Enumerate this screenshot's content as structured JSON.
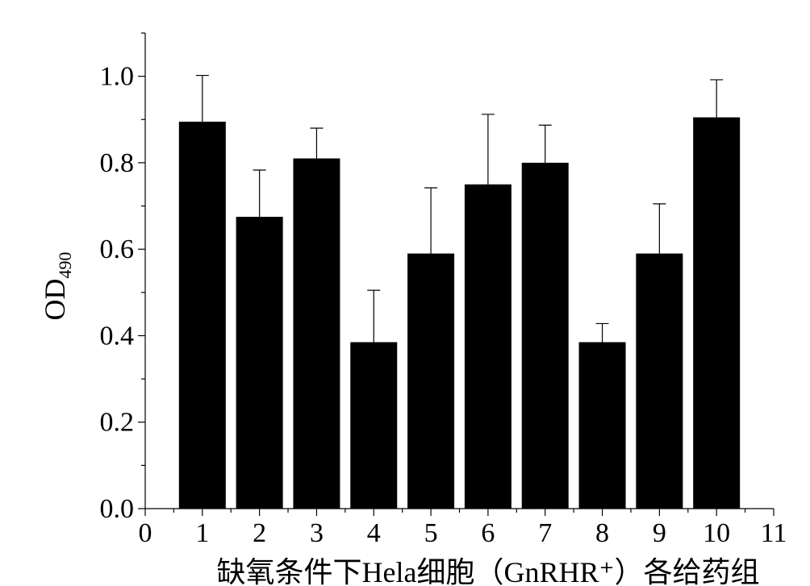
{
  "chart_data": {
    "type": "bar",
    "title": "",
    "xlabel": "缺氧条件下Hela细胞（GnRHR⁺）各给药组",
    "ylabel_main": "OD",
    "ylabel_sub": "490",
    "x": [
      1,
      2,
      3,
      4,
      5,
      6,
      7,
      8,
      9,
      10
    ],
    "values": [
      0.895,
      0.675,
      0.81,
      0.385,
      0.59,
      0.75,
      0.8,
      0.385,
      0.59,
      0.905
    ],
    "error_upper": [
      0.107,
      0.108,
      0.07,
      0.12,
      0.152,
      0.162,
      0.087,
      0.043,
      0.115,
      0.087
    ],
    "xlim": [
      0,
      11
    ],
    "ylim": [
      0,
      1.1
    ],
    "xticks": [
      "0",
      "1",
      "2",
      "3",
      "4",
      "5",
      "6",
      "7",
      "8",
      "9",
      "10",
      "11"
    ],
    "yticks": [
      "0.0",
      "0.2",
      "0.4",
      "0.6",
      "0.8",
      "1.0"
    ],
    "bar_color": "#000000",
    "grid": false,
    "legend": "none"
  }
}
